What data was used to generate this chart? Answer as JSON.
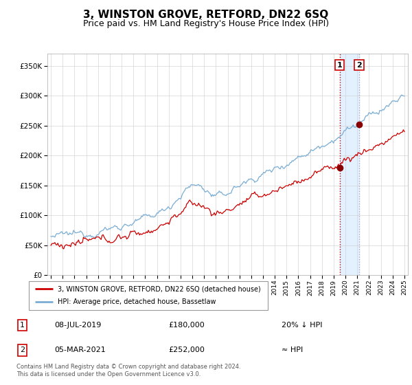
{
  "title": "3, WINSTON GROVE, RETFORD, DN22 6SQ",
  "subtitle": "Price paid vs. HM Land Registry's House Price Index (HPI)",
  "title_fontsize": 11,
  "subtitle_fontsize": 9,
  "legend_line1": "3, WINSTON GROVE, RETFORD, DN22 6SQ (detached house)",
  "legend_line2": "HPI: Average price, detached house, Bassetlaw",
  "transaction1_date": "08-JUL-2019",
  "transaction1_price": 180000,
  "transaction1_note": "20% ↓ HPI",
  "transaction2_date": "05-MAR-2021",
  "transaction2_price": 252000,
  "transaction2_note": "≈ HPI",
  "footer": "Contains HM Land Registry data © Crown copyright and database right 2024.\nThis data is licensed under the Open Government Licence v3.0.",
  "hpi_color": "#7aadd4",
  "price_color": "#cc0000",
  "marker_color": "#880000",
  "vline1_color": "#cc0000",
  "vline2_color": "#aaaacc",
  "shade_color": "#ddeeff",
  "ylim": [
    0,
    370000
  ],
  "yticks": [
    0,
    50000,
    100000,
    150000,
    200000,
    250000,
    300000,
    350000
  ],
  "start_year": 1995,
  "end_year": 2025,
  "transaction1_year": 2019.52,
  "transaction2_year": 2021.17
}
